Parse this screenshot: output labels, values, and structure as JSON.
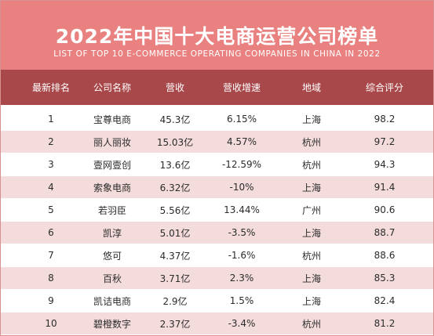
{
  "title": "2022年中国十大电商运营公司榜单",
  "subtitle": "LIST OF TOP 10 E-COMMERCE OPERATING COMPANIES IN CHINA IN 2022",
  "columns": [
    "最新排名",
    "公司名称",
    "营收",
    "营收增速",
    "地域",
    "综合评分"
  ],
  "rows": [
    [
      "1",
      "宝尊电商",
      "45.3亿",
      "6.15%",
      "上海",
      "98.2"
    ],
    [
      "2",
      "丽人丽妆",
      "15.03亿",
      "4.57%",
      "杭州",
      "97.2"
    ],
    [
      "3",
      "壹网壹创",
      "13.6亿",
      "-12.59%",
      "杭州",
      "94.3"
    ],
    [
      "4",
      "索象电商",
      "6.32亿",
      "-10%",
      "上海",
      "91.4"
    ],
    [
      "5",
      "若羽臣",
      "5.56亿",
      "13.44%",
      "广州",
      "90.6"
    ],
    [
      "6",
      "凯淳",
      "5.01亿",
      "-3.5%",
      "上海",
      "88.7"
    ],
    [
      "7",
      "悠可",
      "4.37亿",
      "-1.6%",
      "杭州",
      "88.6"
    ],
    [
      "8",
      "百秋",
      "3.71亿",
      "2.3%",
      "上海",
      "85.3"
    ],
    [
      "9",
      "凯诘电商",
      "2.9亿",
      "1.5%",
      "上海",
      "82.4"
    ],
    [
      "10",
      "碧橙数字",
      "2.37亿",
      "-3.4%",
      "杭州",
      "81.2"
    ]
  ],
  "colors": {
    "header_bg": "#e8817f",
    "column_header_bg": "#a9484a",
    "row_stripe": "#f4dcdc"
  }
}
